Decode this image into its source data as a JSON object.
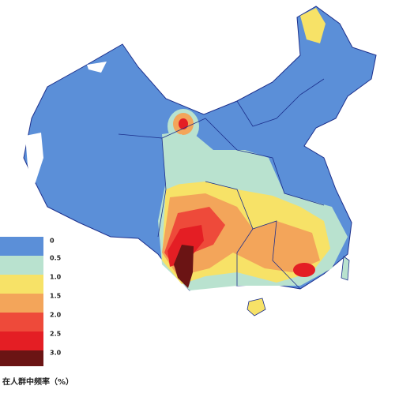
{
  "legend": {
    "title": "在人群中频率（%）",
    "items": [
      {
        "label": "0",
        "color": "#5b8fd8"
      },
      {
        "label": "0.5",
        "color": "#b9e2cf"
      },
      {
        "label": "1.0",
        "color": "#f7e267"
      },
      {
        "label": "1.5",
        "color": "#f3a55a"
      },
      {
        "label": "2.0",
        "color": "#ee4a3a"
      },
      {
        "label": "2.5",
        "color": "#e41e24"
      },
      {
        "label": "3.0",
        "color": "#6b1414"
      }
    ]
  }
}
